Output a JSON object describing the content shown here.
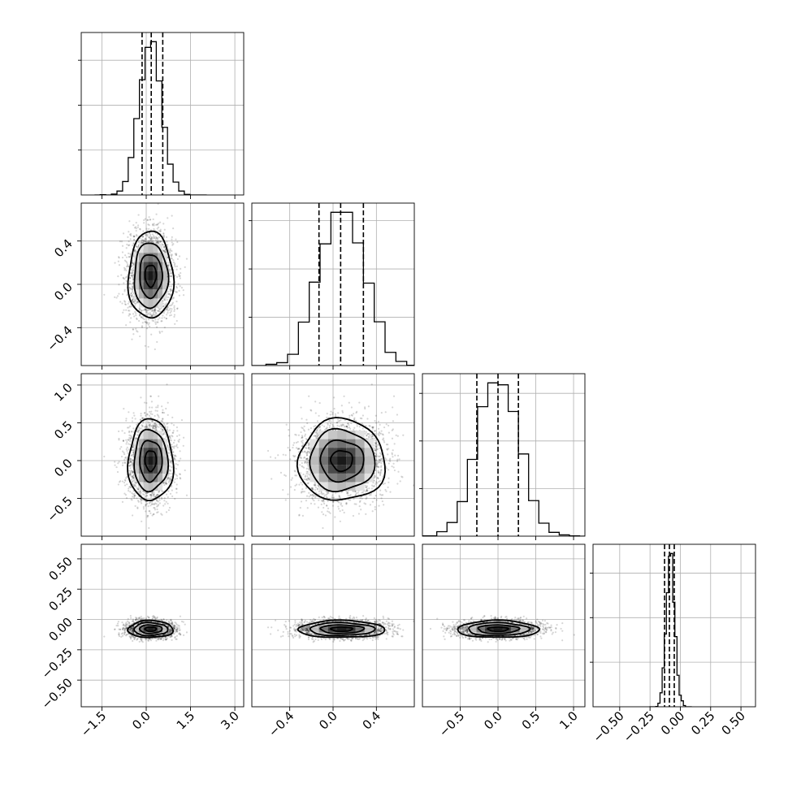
{
  "chart_data": {
    "type": "corner",
    "n_params": 4,
    "grid": true,
    "ranges": [
      [
        -2.2,
        3.3
      ],
      [
        -0.75,
        0.75
      ],
      [
        -1.0,
        1.15
      ],
      [
        -0.72,
        0.62
      ]
    ],
    "ticks": [
      {
        "values": [
          -1.5,
          0.0,
          1.5,
          3.0
        ],
        "labels": [
          "−1.5",
          "0.0",
          "1.5",
          "3.0"
        ]
      },
      {
        "values": [
          -0.4,
          0.0,
          0.4
        ],
        "labels": [
          "−0.4",
          "0.0",
          "0.4"
        ]
      },
      {
        "values": [
          -0.5,
          0.0,
          0.5,
          1.0
        ],
        "labels": [
          "−0.5",
          "0.0",
          "0.5",
          "1.0"
        ]
      },
      {
        "values": [
          -0.5,
          -0.25,
          0.0,
          0.25,
          0.5
        ],
        "labels": [
          "−0.50",
          "−0.25",
          "0.00",
          "0.25",
          "0.50"
        ]
      }
    ],
    "marginals": [
      {
        "mean": 0.15,
        "sd": 0.38,
        "bins": 20,
        "quantiles": [
          -0.14,
          0.17,
          0.56
        ]
      },
      {
        "mean": 0.08,
        "sd": 0.2,
        "bins": 20,
        "quantiles": [
          -0.13,
          0.07,
          0.28
        ]
      },
      {
        "mean": 0.0,
        "sd": 0.27,
        "bins": 20,
        "quantiles": [
          -0.28,
          0.0,
          0.27
        ]
      },
      {
        "mean": -0.08,
        "sd": 0.035,
        "bins": 20,
        "quantiles": [
          -0.13,
          -0.09,
          -0.05
        ]
      }
    ],
    "colors": {
      "ink": "#000000",
      "grid": "#b0b0b0",
      "background": "#ffffff"
    }
  }
}
